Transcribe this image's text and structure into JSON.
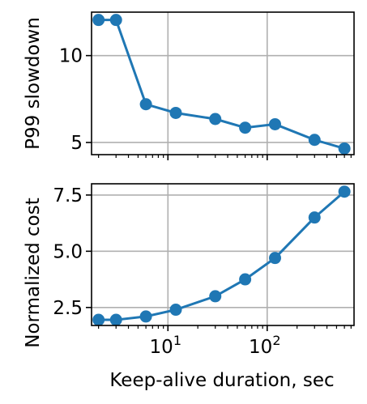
{
  "chart_data": [
    {
      "type": "line",
      "ylabel": "P99 slowdown",
      "xscale": "log",
      "xlim": [
        1.7,
        750
      ],
      "ylim": [
        4.3,
        12.5
      ],
      "grid": true,
      "x": [
        2,
        3,
        6,
        12,
        30,
        60,
        120,
        300,
        600
      ],
      "values": [
        12.05,
        12.05,
        7.2,
        6.7,
        6.35,
        5.85,
        6.05,
        5.15,
        4.65
      ],
      "yticks": [
        {
          "value": 5,
          "label": "5"
        },
        {
          "value": 10,
          "label": "10"
        }
      ],
      "color": "#1f77b4"
    },
    {
      "type": "line",
      "ylabel": "Normalized cost",
      "xlabel": "Keep-alive duration, sec",
      "xscale": "log",
      "xlim": [
        1.7,
        750
      ],
      "ylim": [
        1.7,
        8.0
      ],
      "grid": true,
      "x": [
        2,
        3,
        6,
        12,
        30,
        60,
        120,
        300,
        600
      ],
      "values": [
        1.95,
        1.95,
        2.1,
        2.4,
        3.0,
        3.75,
        4.7,
        6.5,
        7.65
      ],
      "yticks": [
        {
          "value": 2.5,
          "label": "2.5"
        },
        {
          "value": 5.0,
          "label": "5.0"
        },
        {
          "value": 7.5,
          "label": "7.5"
        }
      ],
      "xticks": [
        {
          "value": 10,
          "base": "10",
          "exp": "1"
        },
        {
          "value": 100,
          "base": "10",
          "exp": "2"
        }
      ],
      "color": "#1f77b4"
    }
  ]
}
